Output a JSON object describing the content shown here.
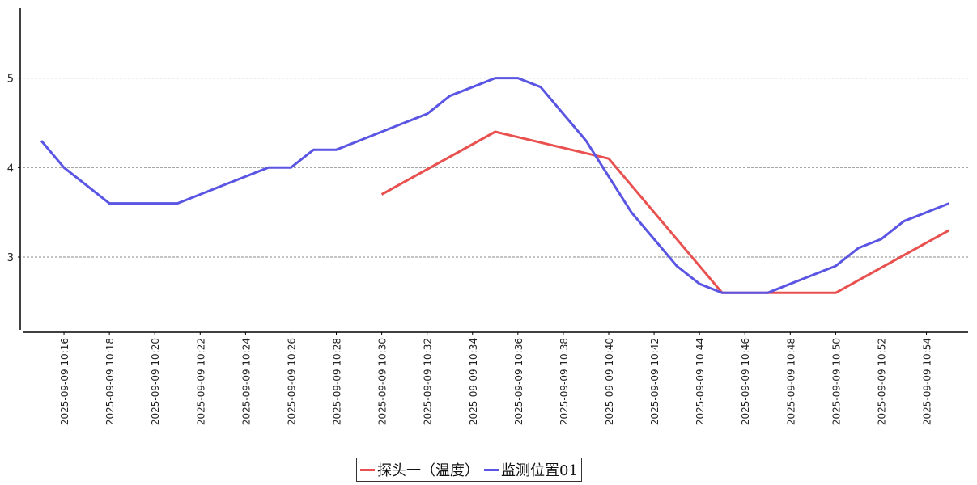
{
  "chart_data": {
    "type": "line",
    "x": [
      "2025-09-09 10:15",
      "2025-09-09 10:16",
      "2025-09-09 10:17",
      "2025-09-09 10:18",
      "2025-09-09 10:19",
      "2025-09-09 10:20",
      "2025-09-09 10:21",
      "2025-09-09 10:22",
      "2025-09-09 10:23",
      "2025-09-09 10:24",
      "2025-09-09 10:25",
      "2025-09-09 10:26",
      "2025-09-09 10:27",
      "2025-09-09 10:28",
      "2025-09-09 10:29",
      "2025-09-09 10:30",
      "2025-09-09 10:31",
      "2025-09-09 10:32",
      "2025-09-09 10:33",
      "2025-09-09 10:34",
      "2025-09-09 10:35",
      "2025-09-09 10:36",
      "2025-09-09 10:37",
      "2025-09-09 10:38",
      "2025-09-09 10:39",
      "2025-09-09 10:40",
      "2025-09-09 10:41",
      "2025-09-09 10:42",
      "2025-09-09 10:43",
      "2025-09-09 10:44",
      "2025-09-09 10:45",
      "2025-09-09 10:46",
      "2025-09-09 10:47",
      "2025-09-09 10:48",
      "2025-09-09 10:49",
      "2025-09-09 10:50",
      "2025-09-09 10:51",
      "2025-09-09 10:52",
      "2025-09-09 10:53",
      "2025-09-09 10:54",
      "2025-09-09 10:55"
    ],
    "x_tick_labels": [
      "2025-09-09  10:16",
      "2025-09-09  10:18",
      "2025-09-09  10:20",
      "2025-09-09  10:22",
      "2025-09-09  10:24",
      "2025-09-09  10:26",
      "2025-09-09  10:28",
      "2025-09-09  10:30",
      "2025-09-09  10:32",
      "2025-09-09  10:34",
      "2025-09-09  10:36",
      "2025-09-09  10:38",
      "2025-09-09  10:40",
      "2025-09-09  10:42",
      "2025-09-09  10:44",
      "2025-09-09  10:46",
      "2025-09-09  10:48",
      "2025-09-09  10:50",
      "2025-09-09  10:52",
      "2025-09-09  10:54"
    ],
    "y_ticks": [
      3,
      4,
      5
    ],
    "ylim": [
      2.2,
      5.8
    ],
    "grid": "horizontal-dashed",
    "legend_position": "bottom-center",
    "series": [
      {
        "name": "探头一（温度）",
        "color": "#e8514f",
        "points": [
          [
            "2025-09-09 10:30",
            3.7
          ],
          [
            "2025-09-09 10:35",
            4.4
          ],
          [
            "2025-09-09 10:40",
            4.1
          ],
          [
            "2025-09-09 10:45",
            2.6
          ],
          [
            "2025-09-09 10:50",
            2.6
          ],
          [
            "2025-09-09 10:55",
            3.3
          ]
        ]
      },
      {
        "name": "监测位置01",
        "color": "#5a55e3",
        "values": [
          4.3,
          4.0,
          3.8,
          3.6,
          3.6,
          3.6,
          3.6,
          3.7,
          3.8,
          3.9,
          4.0,
          4.0,
          4.2,
          4.2,
          4.3,
          4.4,
          4.5,
          4.6,
          4.8,
          4.9,
          5.0,
          5.0,
          4.9,
          4.6,
          4.3,
          3.9,
          3.5,
          3.2,
          2.9,
          2.7,
          2.6,
          2.6,
          2.6,
          2.7,
          2.8,
          2.9,
          3.1,
          3.2,
          3.4,
          3.5,
          3.6
        ]
      }
    ]
  }
}
